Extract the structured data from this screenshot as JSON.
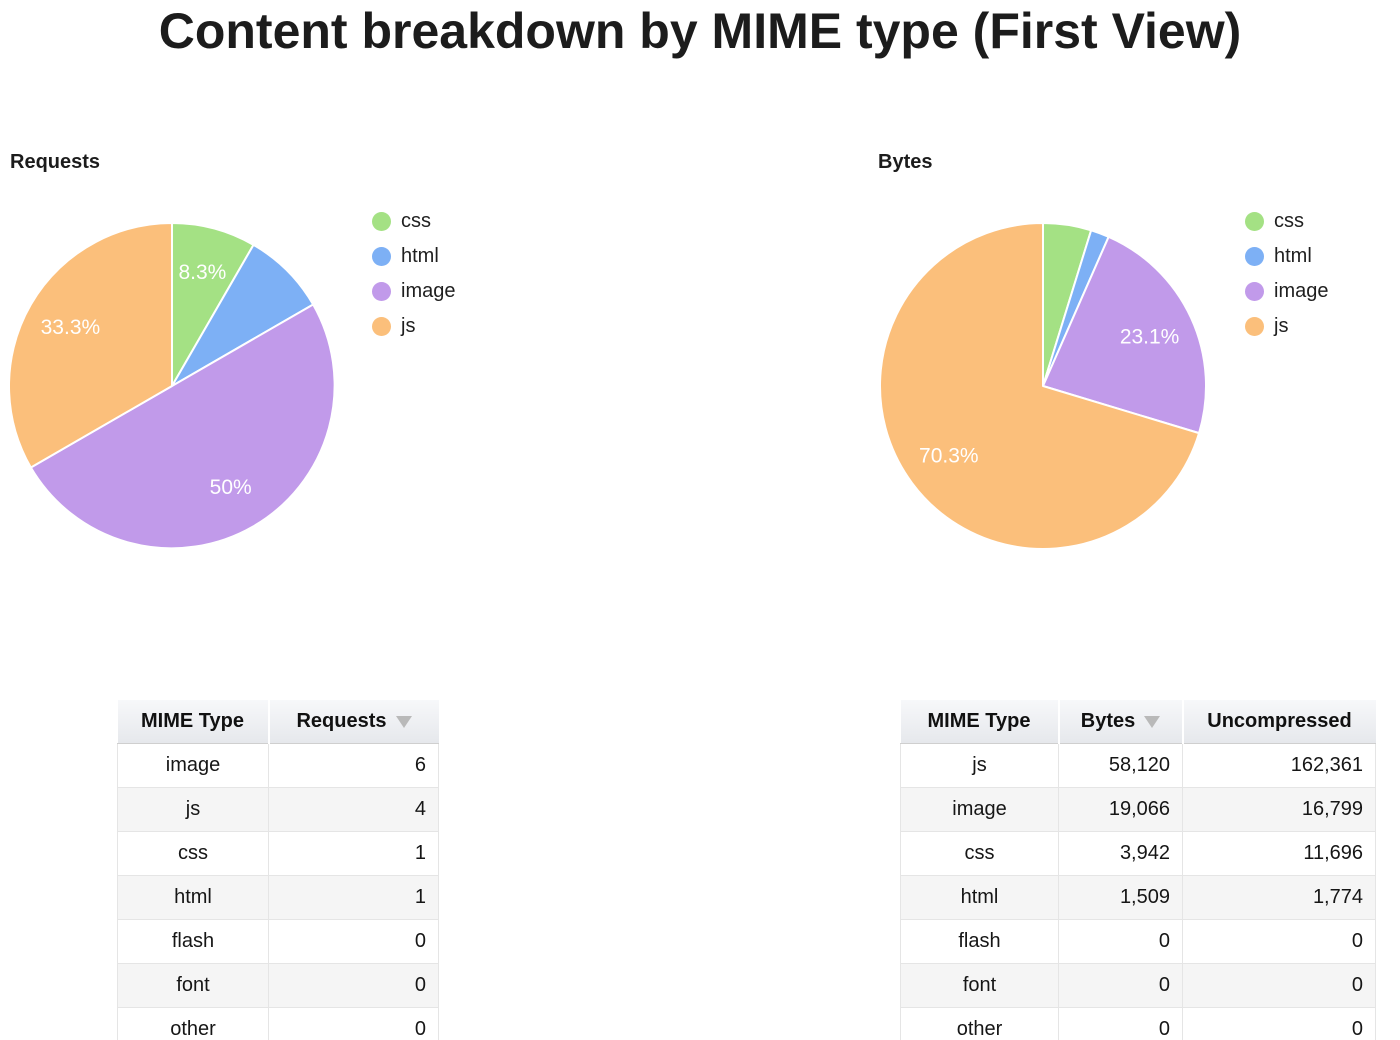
{
  "title": "Content breakdown by MIME type (First View)",
  "chart_data": [
    {
      "type": "pie",
      "title": "Requests",
      "labels": [
        "css",
        "html",
        "image",
        "js"
      ],
      "values": [
        1,
        1,
        6,
        4
      ],
      "pct_labels": [
        "8.3%",
        "",
        "50%",
        "33.3%"
      ],
      "colors": [
        "#a4e184",
        "#7db0f5",
        "#c19aea",
        "#fbbf7b"
      ],
      "legend_position": "right",
      "start_angle": "top",
      "direction": "clockwise"
    },
    {
      "type": "pie",
      "title": "Bytes",
      "labels": [
        "css",
        "html",
        "image",
        "js"
      ],
      "values": [
        3942,
        1509,
        19066,
        58120
      ],
      "pct_labels": [
        "",
        "",
        "23.1%",
        "70.3%"
      ],
      "colors": [
        "#a4e184",
        "#7db0f5",
        "#c19aea",
        "#fbbf7b"
      ],
      "legend_position": "right",
      "start_angle": "top",
      "direction": "clockwise"
    },
    {
      "type": "table",
      "columns": [
        "MIME Type",
        "Requests"
      ],
      "sort_column": "Requests",
      "sort_direction": "desc",
      "rows": [
        [
          "image",
          "6"
        ],
        [
          "js",
          "4"
        ],
        [
          "css",
          "1"
        ],
        [
          "html",
          "1"
        ],
        [
          "flash",
          "0"
        ],
        [
          "font",
          "0"
        ],
        [
          "other",
          "0"
        ]
      ]
    },
    {
      "type": "table",
      "columns": [
        "MIME Type",
        "Bytes",
        "Uncompressed"
      ],
      "sort_column": "Bytes",
      "sort_direction": "desc",
      "rows": [
        [
          "js",
          "58,120",
          "162,361"
        ],
        [
          "image",
          "19,066",
          "16,799"
        ],
        [
          "css",
          "3,942",
          "11,696"
        ],
        [
          "html",
          "1,509",
          "1,774"
        ],
        [
          "flash",
          "0",
          "0"
        ],
        [
          "font",
          "0",
          "0"
        ],
        [
          "other",
          "0",
          "0"
        ]
      ]
    }
  ]
}
